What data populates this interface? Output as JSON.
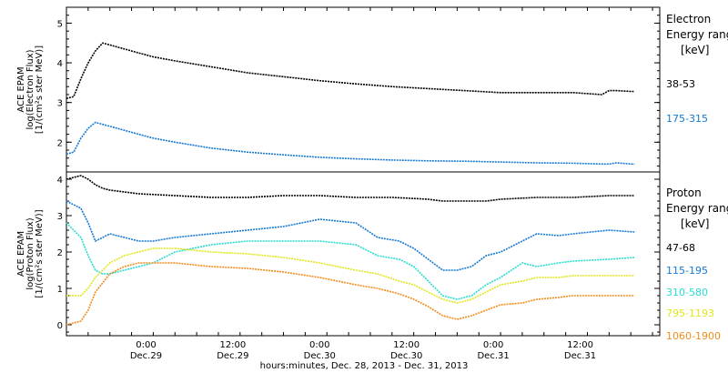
{
  "chart_data": {
    "type": "line",
    "xlabel": "hours:minutes, Dec. 28, 2013 - Dec. 31, 2013",
    "x_range": [
      "Dec.28 13:00",
      "Dec.31 23:00"
    ],
    "x_ticks": [
      {
        "time": "0:00",
        "date": "Dec.29"
      },
      {
        "time": "12:00",
        "date": "Dec.29"
      },
      {
        "time": "0:00",
        "date": "Dec.30"
      },
      {
        "time": "12:00",
        "date": "Dec.30"
      },
      {
        "time": "0:00",
        "date": "Dec.31"
      },
      {
        "time": "12:00",
        "date": "Dec.31"
      }
    ],
    "x_tick_hours": [
      11,
      23,
      35,
      47,
      59,
      71
    ],
    "x_hours_span": [
      0,
      82
    ],
    "panels": [
      {
        "name": "electron",
        "ylabel": [
          "ACE EPAM",
          "log(Electron Flux)",
          "[1/(cm²s ster MeV)]"
        ],
        "ylim": [
          1.25,
          5.4
        ],
        "yticks": [
          2,
          3,
          4,
          5
        ],
        "legend_title": [
          "Electron",
          "Energy range",
          "[keV]"
        ],
        "series": [
          {
            "name": "38-53",
            "color": "#000000",
            "x": [
              0,
              1,
              2,
              3,
              4,
              5,
              6,
              8,
              10,
              12,
              15,
              20,
              25,
              30,
              35,
              40,
              45,
              50,
              55,
              60,
              65,
              70,
              74,
              75,
              76,
              78,
              78.5
            ],
            "y": [
              3.1,
              3.15,
              3.6,
              4.0,
              4.3,
              4.5,
              4.45,
              4.35,
              4.25,
              4.15,
              4.05,
              3.9,
              3.75,
              3.65,
              3.55,
              3.47,
              3.4,
              3.35,
              3.3,
              3.25,
              3.25,
              3.25,
              3.2,
              3.3,
              3.3,
              3.28,
              3.28
            ]
          },
          {
            "name": "175-315",
            "color": "#1479d4",
            "x": [
              0,
              1,
              2,
              3,
              4,
              5,
              6,
              8,
              10,
              12,
              15,
              20,
              25,
              30,
              35,
              40,
              45,
              50,
              55,
              60,
              65,
              70,
              74,
              75,
              76,
              78,
              78.5
            ],
            "y": [
              1.7,
              1.75,
              2.1,
              2.35,
              2.5,
              2.45,
              2.4,
              2.3,
              2.2,
              2.1,
              2.0,
              1.85,
              1.75,
              1.68,
              1.62,
              1.58,
              1.55,
              1.53,
              1.52,
              1.5,
              1.48,
              1.47,
              1.45,
              1.45,
              1.48,
              1.45,
              1.45
            ]
          }
        ]
      },
      {
        "name": "proton",
        "ylabel": [
          "ACE EPAM",
          "log(Proton Flux)",
          "[1/(cm²s ster MeV)]"
        ],
        "ylim": [
          -0.3,
          4.2
        ],
        "yticks": [
          0,
          1,
          2,
          3,
          4
        ],
        "legend_title": [
          "Proton",
          "Energy range",
          "[keV]"
        ],
        "series": [
          {
            "name": "47-68",
            "color": "#000000",
            "x": [
              0,
              2,
              3,
              4,
              5,
              6,
              8,
              10,
              15,
              20,
              25,
              30,
              35,
              40,
              45,
              50,
              52,
              55,
              58,
              60,
              65,
              70,
              75,
              78.5
            ],
            "y": [
              4.0,
              4.1,
              4.0,
              3.85,
              3.75,
              3.7,
              3.65,
              3.6,
              3.55,
              3.5,
              3.5,
              3.55,
              3.55,
              3.5,
              3.5,
              3.45,
              3.4,
              3.4,
              3.4,
              3.45,
              3.5,
              3.5,
              3.55,
              3.55
            ]
          },
          {
            "name": "115-195",
            "color": "#1479d4",
            "x": [
              0,
              2,
              3,
              4,
              5,
              6,
              8,
              10,
              12,
              15,
              20,
              25,
              30,
              35,
              40,
              43,
              46,
              48,
              50,
              52,
              54,
              56,
              58,
              60,
              63,
              65,
              68,
              70,
              75,
              78.5
            ],
            "y": [
              3.4,
              3.2,
              2.8,
              2.3,
              2.4,
              2.5,
              2.4,
              2.3,
              2.3,
              2.4,
              2.5,
              2.6,
              2.7,
              2.9,
              2.8,
              2.4,
              2.3,
              2.1,
              1.8,
              1.5,
              1.5,
              1.6,
              1.9,
              2.0,
              2.3,
              2.5,
              2.45,
              2.5,
              2.6,
              2.55
            ]
          },
          {
            "name": "310-580",
            "color": "#27dcd0",
            "x": [
              0,
              2,
              3,
              4,
              5,
              6,
              8,
              10,
              12,
              15,
              20,
              25,
              30,
              35,
              40,
              43,
              46,
              48,
              50,
              52,
              54,
              56,
              58,
              60,
              63,
              65,
              68,
              70,
              75,
              78.5
            ],
            "y": [
              2.8,
              2.4,
              1.9,
              1.5,
              1.4,
              1.4,
              1.5,
              1.6,
              1.7,
              2.0,
              2.2,
              2.3,
              2.3,
              2.3,
              2.2,
              1.9,
              1.8,
              1.6,
              1.2,
              0.8,
              0.7,
              0.8,
              1.1,
              1.3,
              1.7,
              1.6,
              1.7,
              1.75,
              1.8,
              1.85
            ]
          },
          {
            "name": "795-1193",
            "color": "#e0e61c",
            "x": [
              0,
              2,
              3,
              4,
              6,
              8,
              10,
              12,
              15,
              20,
              25,
              30,
              35,
              40,
              43,
              46,
              48,
              50,
              52,
              54,
              56,
              58,
              60,
              63,
              65,
              68,
              70,
              75,
              78.5
            ],
            "y": [
              0.8,
              0.8,
              1.0,
              1.3,
              1.7,
              1.9,
              2.0,
              2.1,
              2.1,
              2.0,
              1.95,
              1.85,
              1.7,
              1.5,
              1.4,
              1.2,
              1.1,
              0.9,
              0.7,
              0.6,
              0.7,
              0.9,
              1.1,
              1.2,
              1.3,
              1.3,
              1.35,
              1.35,
              1.35
            ]
          },
          {
            "name": "1060-1900",
            "color": "#f28c1c",
            "x": [
              0,
              2,
              3,
              4,
              6,
              8,
              10,
              12,
              15,
              20,
              25,
              30,
              35,
              40,
              43,
              46,
              48,
              50,
              52,
              54,
              56,
              58,
              60,
              63,
              65,
              68,
              70,
              75,
              78.5
            ],
            "y": [
              0.0,
              0.1,
              0.4,
              0.9,
              1.4,
              1.6,
              1.7,
              1.7,
              1.7,
              1.6,
              1.55,
              1.45,
              1.3,
              1.1,
              1.0,
              0.85,
              0.7,
              0.5,
              0.25,
              0.15,
              0.25,
              0.4,
              0.55,
              0.6,
              0.7,
              0.75,
              0.8,
              0.8,
              0.8
            ]
          }
        ]
      }
    ]
  }
}
